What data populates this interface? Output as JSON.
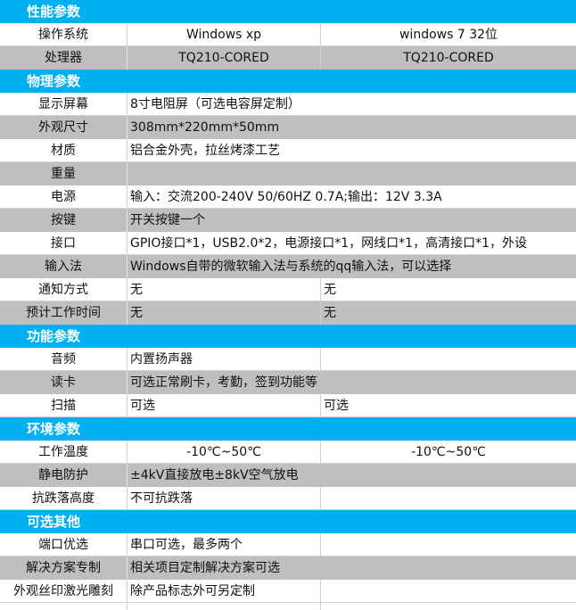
{
  "colors": {
    "header": "#00b0f0",
    "stripe": "#bfbfbf"
  },
  "rows": [
    {
      "type": "header",
      "title": "性能参数"
    },
    {
      "type": "two",
      "label": "操作系统",
      "v1": "Windows xp",
      "v2": "windows 7 32位",
      "center": true
    },
    {
      "type": "two",
      "label": "处理器",
      "v1": "TQ210-CORED",
      "v2": "TQ210-CORED",
      "center": true
    },
    {
      "type": "header",
      "title": "物理参数"
    },
    {
      "type": "span",
      "label": "显示屏幕",
      "v1": "8寸电阻屏（可选电容屏定制）"
    },
    {
      "type": "span",
      "label": "外观尺寸",
      "v1": "308mm*220mm*50mm"
    },
    {
      "type": "span",
      "label": "材质",
      "v1": "铝合金外壳，拉丝烤漆工艺"
    },
    {
      "type": "span",
      "label": "重量",
      "v1": ""
    },
    {
      "type": "span",
      "label": "电源",
      "v1": "输入：交流200-240V  50/60HZ 0.7A;输出：12V 3.3A"
    },
    {
      "type": "span",
      "label": "按键",
      "v1": "开关按键一个"
    },
    {
      "type": "span",
      "label": "接口",
      "v1": "GPIO接口*1，USB2.0*2，电源接口*1，网线口*1，高清接口*1，外设"
    },
    {
      "type": "span",
      "label": "输入法",
      "v1": "Windows自带的微软输入法与系统的qq输入法，可以选择"
    },
    {
      "type": "two",
      "label": "通知方式",
      "v1": "无",
      "v2": "无"
    },
    {
      "type": "two",
      "label": "预计工作时间",
      "v1": "无",
      "v2": "无"
    },
    {
      "type": "header",
      "title": "功能参数"
    },
    {
      "type": "two",
      "label": "音频",
      "v1": "内置扬声器",
      "v2": ""
    },
    {
      "type": "span",
      "label": "读卡",
      "v1": "可选正常刷卡，考勤，签到功能等"
    },
    {
      "type": "two",
      "label": "扫描",
      "v1": "可选",
      "v2": "可选"
    },
    {
      "type": "header",
      "title": "环境参数"
    },
    {
      "type": "two",
      "label": "工作温度",
      "v1": "-10℃~50℃",
      "v2": "-10℃~50℃",
      "center": true
    },
    {
      "type": "span",
      "label": "静电防护",
      "v1": "±4kV直接放电±8kV空气放电"
    },
    {
      "type": "two",
      "label": "抗跌落高度",
      "v1": "不可抗跌落",
      "v2": ""
    },
    {
      "type": "header",
      "title": "可选其他"
    },
    {
      "type": "two",
      "label": "端口优选",
      "v1": "串口可选，最多两个",
      "v2": ""
    },
    {
      "type": "span",
      "label": "解决方案专制",
      "v1": "相关项目定制解决方案可选"
    },
    {
      "type": "two",
      "label": "外观丝印激光雕刻",
      "v1": "除产品标志外可另定制",
      "v2": ""
    }
  ]
}
